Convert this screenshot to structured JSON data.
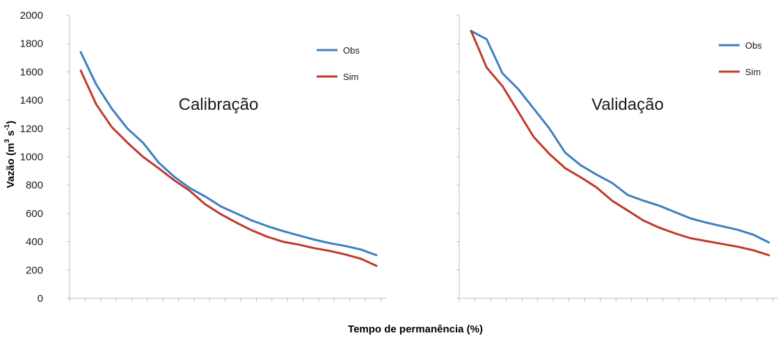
{
  "ylabel": "Vazão (m",
  "ylabel_sup1": "3",
  "ylabel_mid": " s",
  "ylabel_sup2": "-1",
  "ylabel_end": ")",
  "xlabel": "Tempo de permanência (%)",
  "colors": {
    "obs": "#3f7fc0",
    "sim": "#c0392b"
  },
  "chart_data": [
    {
      "type": "line",
      "panel_label": "Calibração",
      "y_ticks": [
        0,
        200,
        400,
        600,
        800,
        1000,
        1200,
        1400,
        1600,
        1800,
        2000
      ],
      "ylim": [
        0,
        2000
      ],
      "x_ticks_count": 20,
      "grid": false,
      "legend_placement": "top-right",
      "series": [
        {
          "name": "Obs",
          "color": "#3f7fc0",
          "values": [
            1740,
            1510,
            1340,
            1200,
            1100,
            960,
            860,
            780,
            720,
            650,
            600,
            550,
            510,
            475,
            445,
            415,
            390,
            370,
            345,
            305
          ]
        },
        {
          "name": "Sim",
          "color": "#c0392b",
          "values": [
            1610,
            1370,
            1210,
            1100,
            1000,
            920,
            835,
            760,
            665,
            595,
            535,
            480,
            435,
            400,
            380,
            355,
            335,
            310,
            280,
            230
          ]
        }
      ]
    },
    {
      "type": "line",
      "panel_label": "Validação",
      "ylim": [
        0,
        2000
      ],
      "x_ticks_count": 20,
      "grid": false,
      "legend_placement": "top-right",
      "series": [
        {
          "name": "Obs",
          "color": "#3f7fc0",
          "values": [
            1890,
            1830,
            1590,
            1480,
            1340,
            1200,
            1030,
            940,
            875,
            815,
            730,
            690,
            655,
            610,
            565,
            535,
            510,
            485,
            450,
            395
          ]
        },
        {
          "name": "Sim",
          "color": "#c0392b",
          "values": [
            1890,
            1630,
            1500,
            1320,
            1140,
            1020,
            920,
            855,
            785,
            690,
            620,
            550,
            500,
            460,
            425,
            405,
            385,
            365,
            340,
            305
          ]
        }
      ]
    }
  ]
}
